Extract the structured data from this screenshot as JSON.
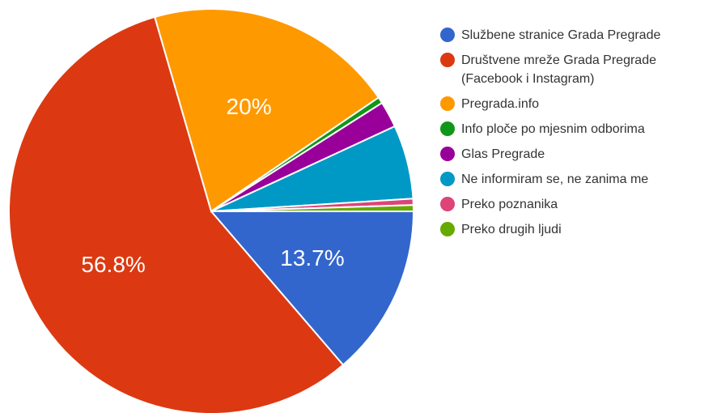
{
  "chart_data": {
    "type": "pie",
    "slices": [
      {
        "label": "Službene stranice Grada Pregrade",
        "label_lines": [
          "Službene stranice Grada Pregrade"
        ],
        "value": 13.7,
        "color": "#3366cc",
        "data_label": "13.7%"
      },
      {
        "label": "Društvene mreže Grada Pregrade (Facebook i Instagram)",
        "label_lines": [
          "Društvene mreže Grada Pregrade",
          "(Facebook i Instagram)"
        ],
        "value": 56.8,
        "color": "#dc3912",
        "data_label": "56.8%"
      },
      {
        "label": "Pregrada.info",
        "label_lines": [
          "Pregrada.info"
        ],
        "value": 20,
        "color": "#ff9900",
        "data_label": "20%"
      },
      {
        "label": "Info ploče po mjesnim odborima",
        "label_lines": [
          "Info ploče po mjesnim odborima"
        ],
        "value": 0.5,
        "color": "#109618",
        "data_label": ""
      },
      {
        "label": "Glas Pregrade",
        "label_lines": [
          "Glas Pregrade"
        ],
        "value": 2.1,
        "color": "#990099",
        "data_label": ""
      },
      {
        "label": "Ne informiram se, ne zanima me",
        "label_lines": [
          "Ne informiram se, ne zanima me"
        ],
        "value": 5.9,
        "color": "#0099c6",
        "data_label": ""
      },
      {
        "label": "Preko poznanika",
        "label_lines": [
          "Preko poznanika"
        ],
        "value": 0.5,
        "color": "#dd4477",
        "data_label": ""
      },
      {
        "label": "Preko drugih ljudi",
        "label_lines": [
          "Preko drugih ljudi"
        ],
        "value": 0.5,
        "color": "#66aa00",
        "data_label": ""
      }
    ],
    "start_direction": "3 o'clock",
    "order": "clockwise",
    "legend_position": "right"
  }
}
